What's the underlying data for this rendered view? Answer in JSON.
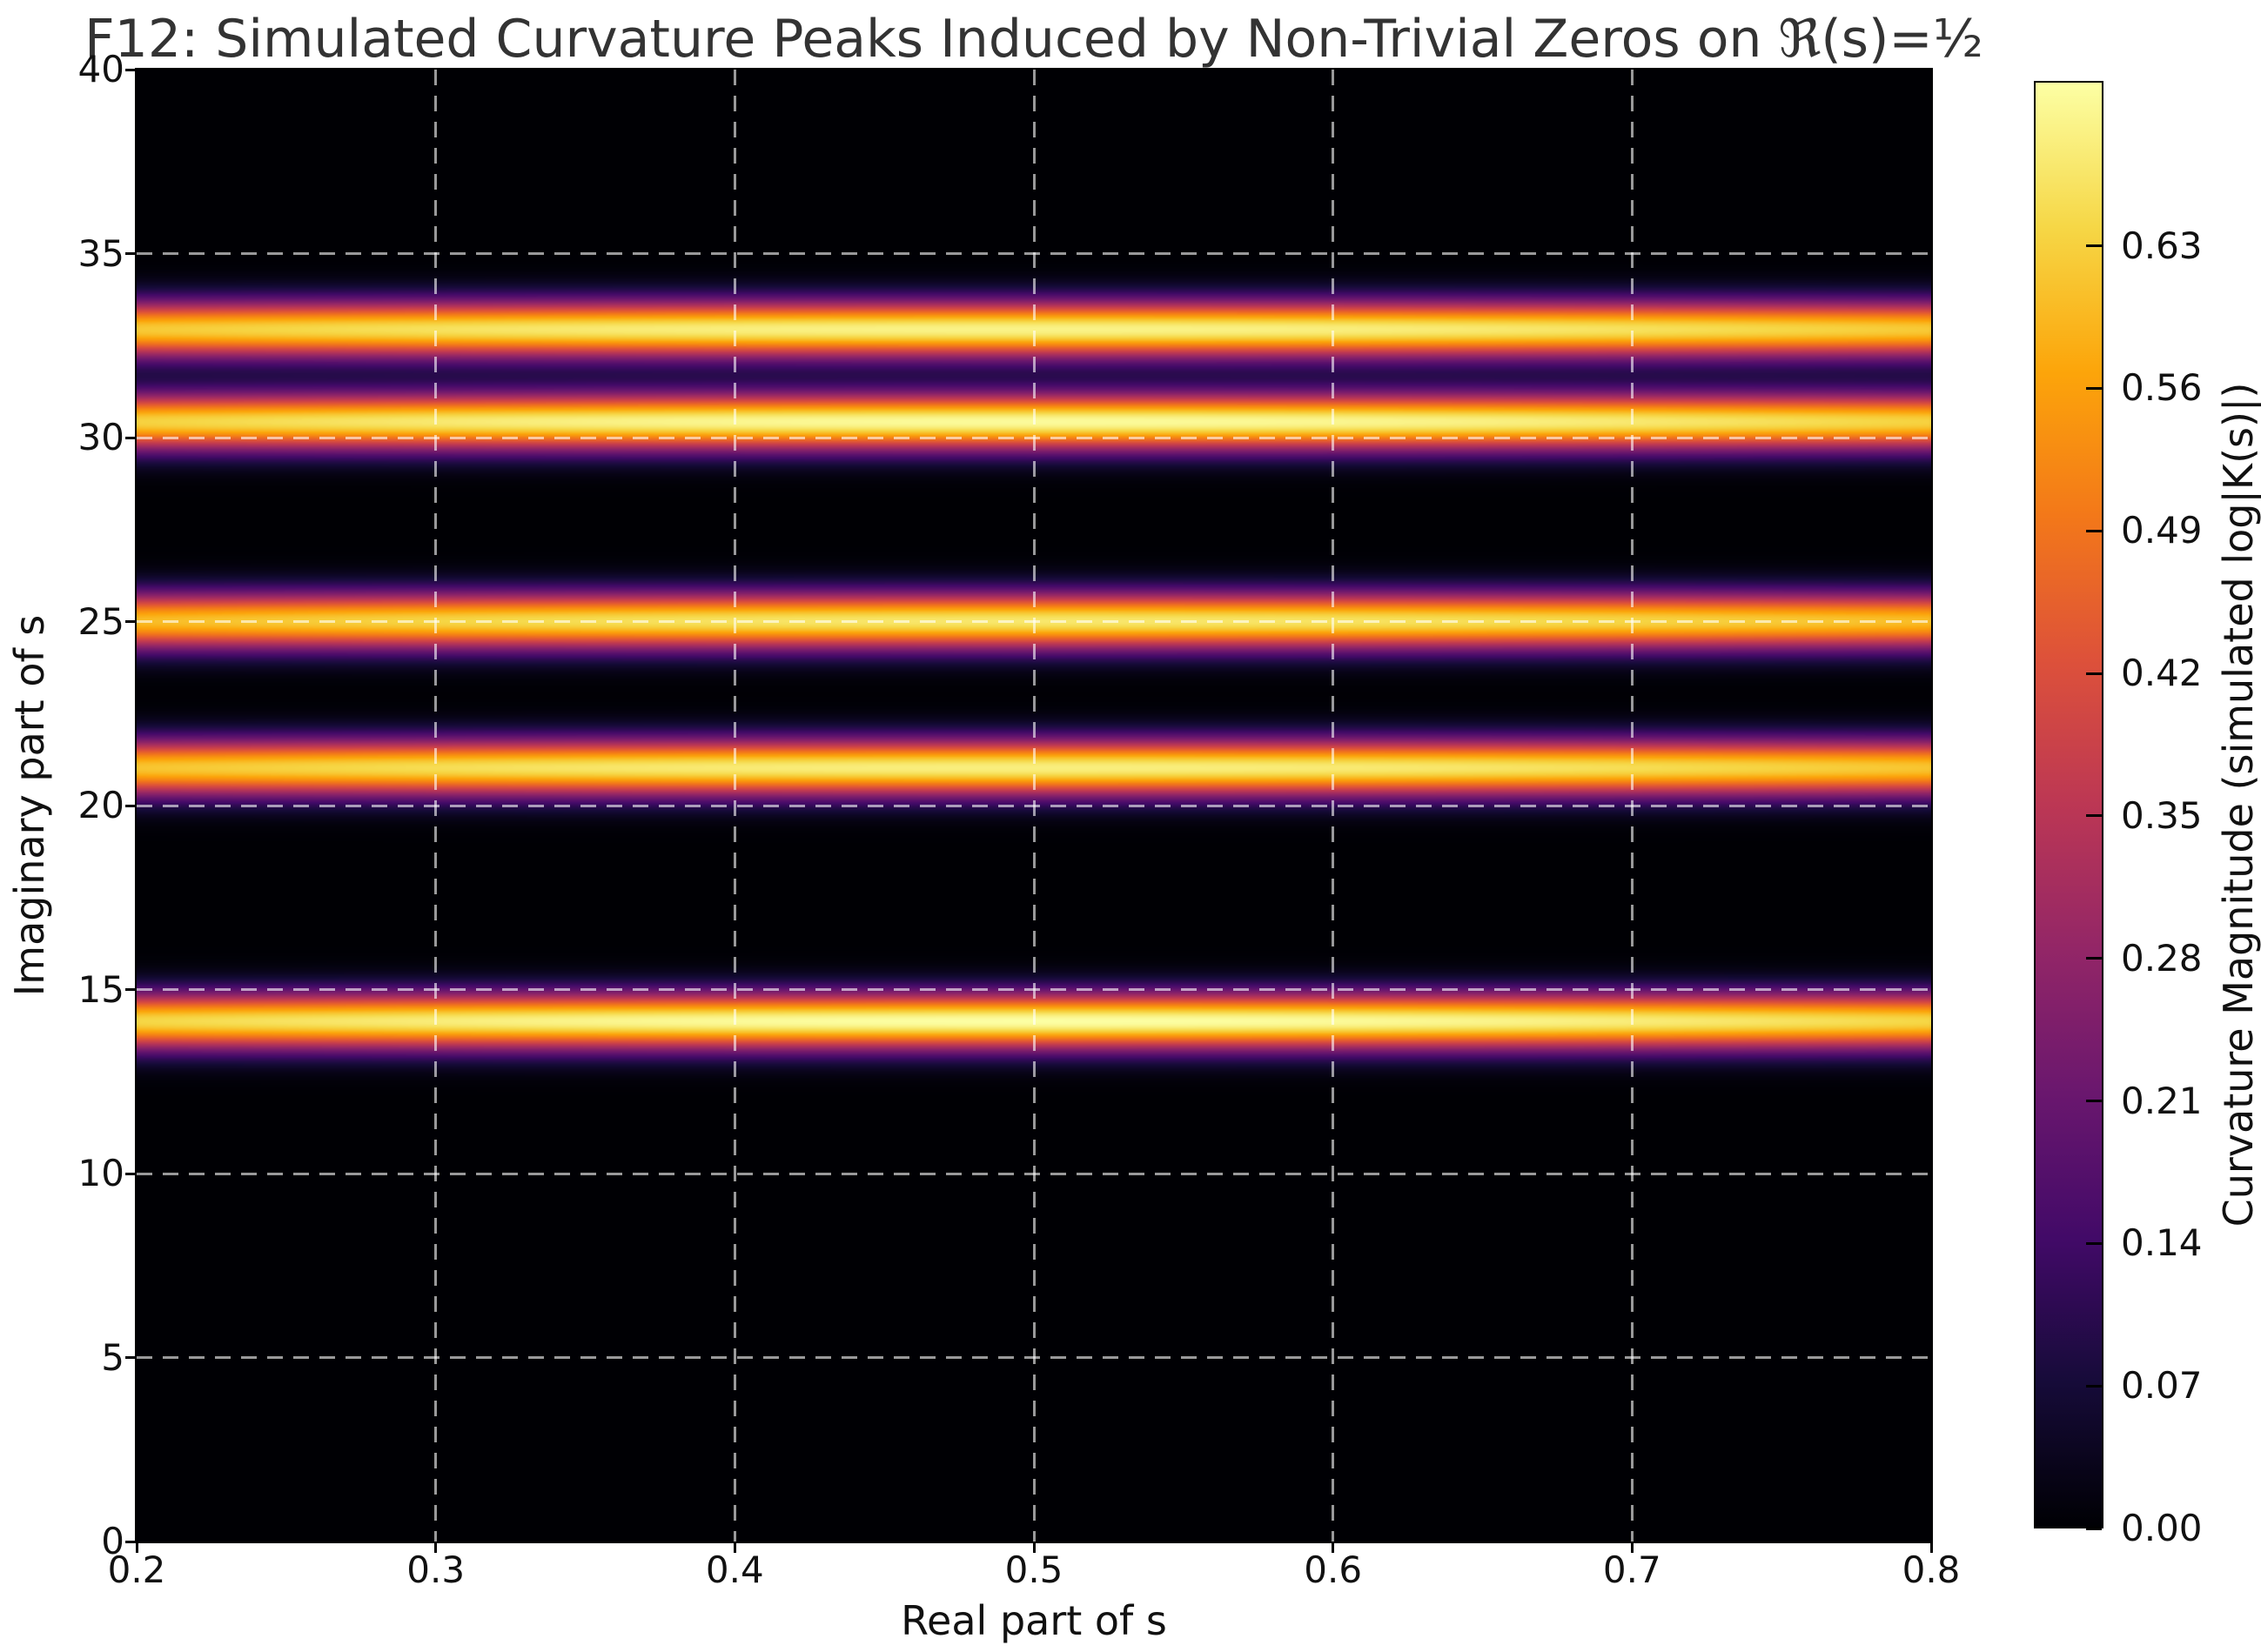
{
  "colors": {
    "background": "#ffffff",
    "title_text": "#333333",
    "tick_text": "#111111",
    "spine": "#000000",
    "grid": "rgba(255,255,255,0.6)"
  },
  "chart_data": {
    "type": "heatmap",
    "title": "F12: Simulated Curvature Peaks Induced by Non-Trivial Zeros on ℜ(s)=½",
    "xlabel": "Real part of s",
    "ylabel": "Imaginary part of s",
    "x_range": [
      0.2,
      0.8
    ],
    "y_range": [
      0,
      40
    ],
    "x_tick_labels": [
      "0.2",
      "0.3",
      "0.4",
      "0.5",
      "0.6",
      "0.7",
      "0.8"
    ],
    "y_tick_labels": [
      "0",
      "5",
      "10",
      "15",
      "20",
      "25",
      "30",
      "35",
      "40"
    ],
    "grid": true,
    "grid_style": "dashed",
    "colorbar": {
      "label": "Curvature Magnitude (simulated log|K(s)|)",
      "tick_labels": [
        "0.00",
        "0.07",
        "0.14",
        "0.21",
        "0.28",
        "0.35",
        "0.42",
        "0.49",
        "0.56",
        "0.63"
      ],
      "vmin": 0.0,
      "vmax": 0.711,
      "colormap": "inferno",
      "colormap_stops": [
        "#000004",
        "#160b39",
        "#420a68",
        "#6a176e",
        "#932667",
        "#bc3754",
        "#dd513a",
        "#f37819",
        "#fca50a",
        "#f6d746",
        "#fcffa4"
      ]
    },
    "bands": {
      "description": "Horizontal Gaussian intensity bands centered at imaginary parts of the first five non-trivial zeta zeros",
      "centers_t": [
        14.1347,
        21.022,
        25.0109,
        30.4249,
        32.9351
      ],
      "amplitudes": [
        1.0,
        0.96,
        0.94,
        0.99,
        0.97
      ],
      "sigma_t": 0.55,
      "x_modulation": {
        "center": 0.5,
        "sigma": 0.65
      },
      "peak_value": 0.711
    }
  }
}
